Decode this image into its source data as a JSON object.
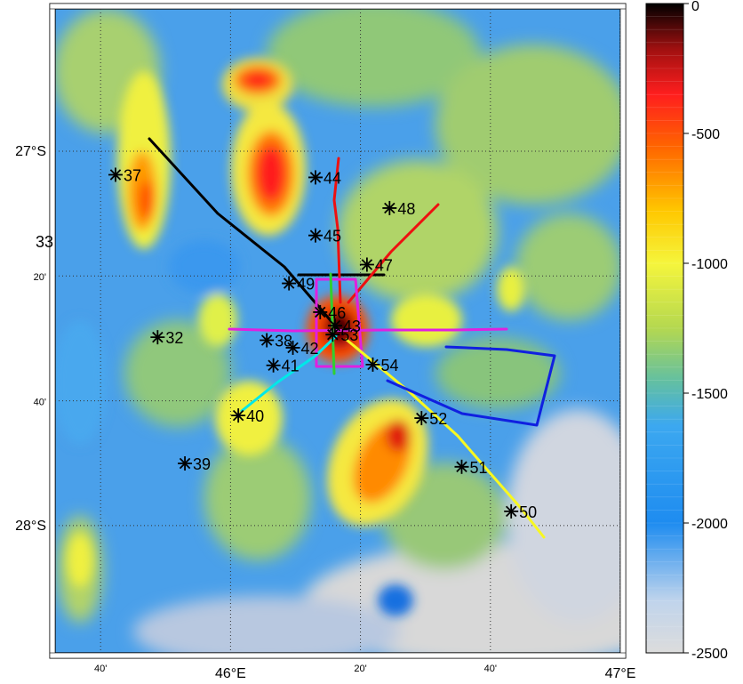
{
  "map": {
    "x_ticks": [
      {
        "label": "40'",
        "major": false
      },
      {
        "label": "46°E",
        "major": true
      },
      {
        "label": "20'",
        "major": false
      },
      {
        "label": "40'",
        "major": false
      },
      {
        "label": "47°E",
        "major": true
      }
    ],
    "y_ticks": [
      {
        "label": "27°S",
        "major": true
      },
      {
        "label": "20'",
        "major": false
      },
      {
        "label": "40'",
        "major": false
      },
      {
        "label": "28°S",
        "major": true
      }
    ],
    "edge_label": "33",
    "colors": {
      "deep": "#d8d8d8",
      "blue": "#1e8cf0",
      "green": "#96c864",
      "yellow": "#f5f53c",
      "orange": "#ff9600",
      "red": "#ff1e1e",
      "dark": "#000000"
    }
  },
  "colorbar": {
    "labels": [
      "0",
      "-500",
      "-1000",
      "-1500",
      "-2000",
      "-2500"
    ]
  },
  "stations": [
    {
      "id": "37",
      "x": 45.705,
      "y": -27.063
    },
    {
      "id": "44",
      "x": 46.218,
      "y": -27.07
    },
    {
      "id": "48",
      "x": 46.408,
      "y": -27.152
    },
    {
      "id": "45",
      "x": 46.218,
      "y": -27.225
    },
    {
      "id": "47",
      "x": 46.35,
      "y": -27.303
    },
    {
      "id": "49",
      "x": 46.15,
      "y": -27.353
    },
    {
      "id": "46",
      "x": 46.23,
      "y": -27.43
    },
    {
      "id": "43",
      "x": 46.268,
      "y": -27.466
    },
    {
      "id": "53",
      "x": 46.262,
      "y": -27.49
    },
    {
      "id": "32",
      "x": 45.813,
      "y": -27.497
    },
    {
      "id": "38",
      "x": 46.093,
      "y": -27.505
    },
    {
      "id": "42",
      "x": 46.16,
      "y": -27.525
    },
    {
      "id": "41",
      "x": 46.11,
      "y": -27.572
    },
    {
      "id": "54",
      "x": 46.365,
      "y": -27.57
    },
    {
      "id": "40",
      "x": 46.02,
      "y": -27.706
    },
    {
      "id": "52",
      "x": 46.49,
      "y": -27.713
    },
    {
      "id": "39",
      "x": 45.883,
      "y": -27.834
    },
    {
      "id": "51",
      "x": 46.593,
      "y": -27.843
    },
    {
      "id": "50",
      "x": 46.72,
      "y": -27.962
    }
  ]
}
